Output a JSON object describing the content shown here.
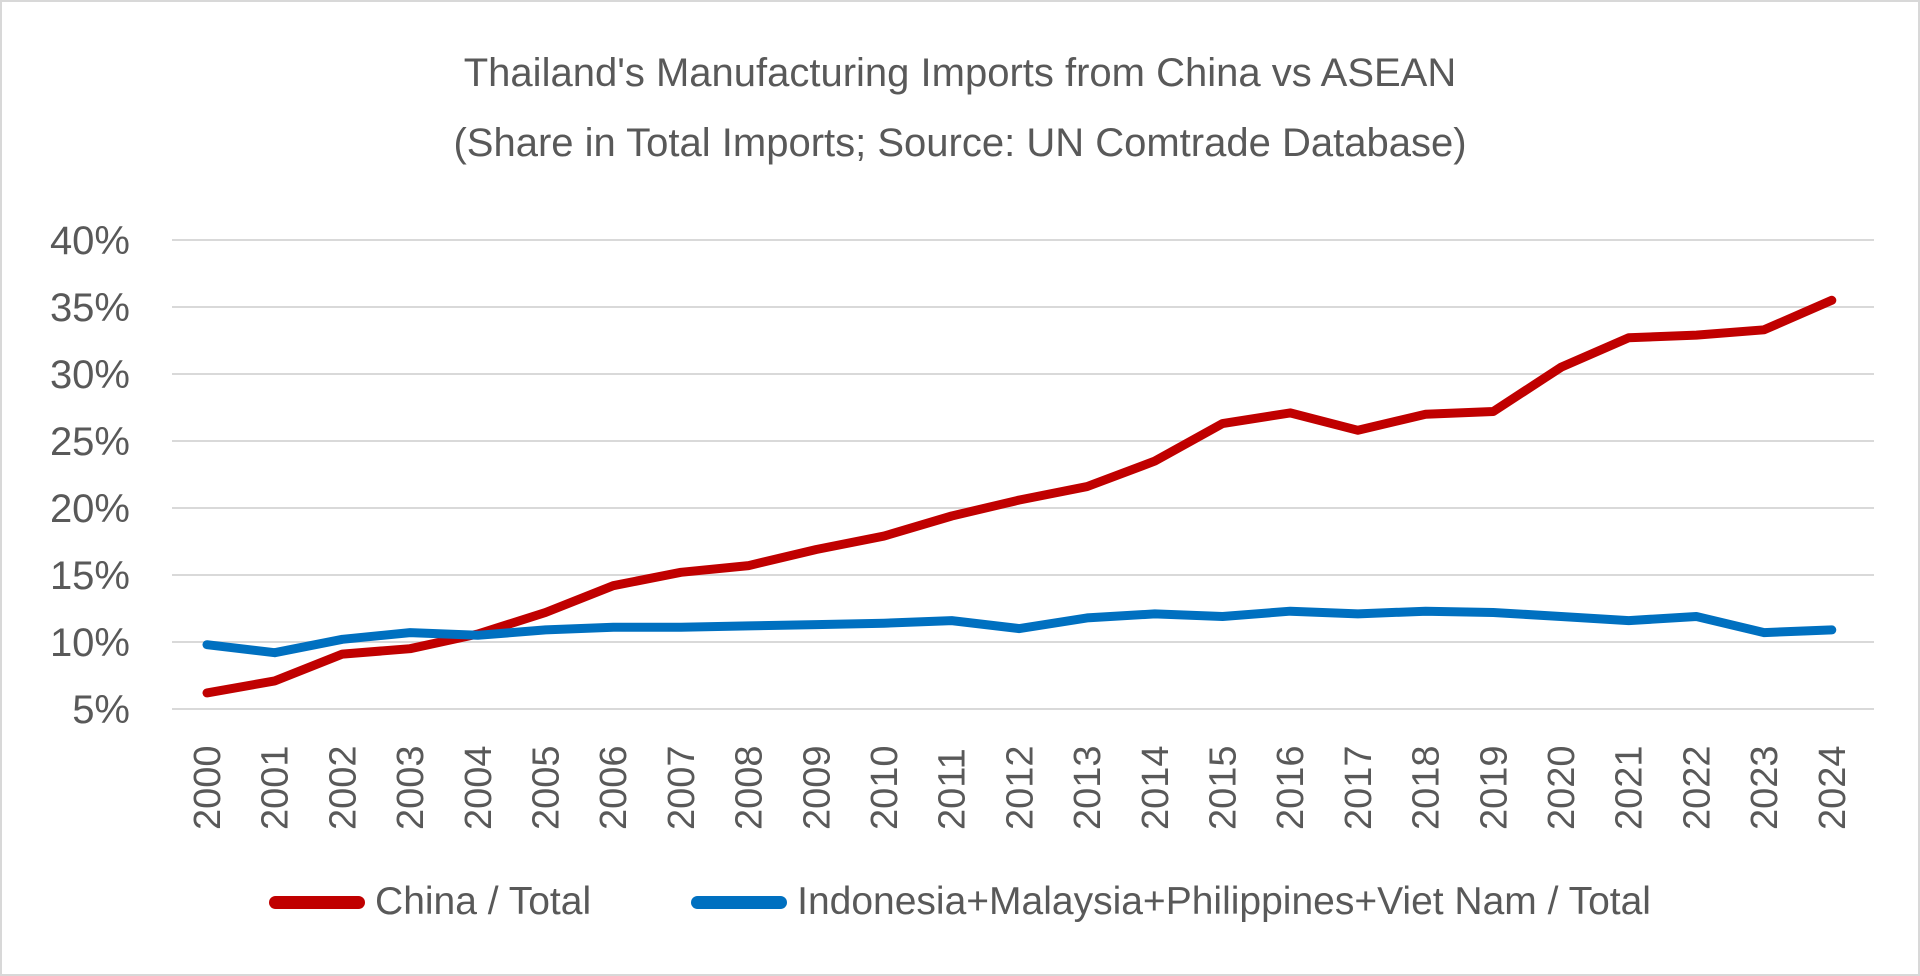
{
  "title": {
    "line1": "Thailand's Manufacturing Imports from China vs ASEAN",
    "line2": "(Share in Total Imports; Source: UN Comtrade Database)"
  },
  "legend": {
    "items": [
      {
        "label": "China / Total",
        "color": "#C00000"
      },
      {
        "label": "Indonesia+Malaysia+Philippines+Viet Nam / Total",
        "color": "#0070C0"
      }
    ]
  },
  "chart_data": {
    "type": "line",
    "title": "Thailand's Manufacturing Imports from China vs ASEAN",
    "subtitle": "(Share in Total Imports; Source: UN Comtrade Database)",
    "x": [
      2000,
      2001,
      2002,
      2003,
      2004,
      2005,
      2006,
      2007,
      2008,
      2009,
      2010,
      2011,
      2012,
      2013,
      2014,
      2015,
      2016,
      2017,
      2018,
      2019,
      2020,
      2021,
      2022,
      2023,
      2024
    ],
    "series": [
      {
        "name": "China / Total",
        "color": "#C00000",
        "values": [
          6.2,
          7.1,
          9.1,
          9.5,
          10.6,
          12.2,
          14.2,
          15.2,
          15.7,
          16.9,
          17.9,
          19.4,
          20.6,
          21.6,
          23.5,
          26.3,
          27.1,
          25.8,
          27.0,
          27.2,
          30.5,
          32.7,
          32.9,
          33.3,
          35.5
        ]
      },
      {
        "name": "Indonesia+Malaysia+Philippines+Viet Nam / Total",
        "color": "#0070C0",
        "values": [
          9.8,
          9.2,
          10.2,
          10.7,
          10.5,
          10.9,
          11.1,
          11.1,
          11.2,
          11.3,
          11.4,
          11.6,
          11.0,
          11.8,
          12.1,
          11.9,
          12.3,
          12.1,
          12.3,
          12.2,
          11.9,
          11.6,
          11.9,
          10.7,
          10.9
        ]
      }
    ],
    "y_ticks": [
      {
        "value": 40,
        "label": "40%"
      },
      {
        "value": 35,
        "label": "35%"
      },
      {
        "value": 30,
        "label": "30%"
      },
      {
        "value": 25,
        "label": "25%"
      },
      {
        "value": 20,
        "label": "20%"
      },
      {
        "value": 15,
        "label": "15%"
      },
      {
        "value": 10,
        "label": "10%"
      },
      {
        "value": 5,
        "label": "5%"
      }
    ],
    "ylim": [
      5,
      40
    ],
    "xlabel": "",
    "ylabel": "",
    "grid": true,
    "legend_position": "bottom",
    "axis_text_color": "#595959",
    "gridline_color": "#D9D9D9"
  }
}
